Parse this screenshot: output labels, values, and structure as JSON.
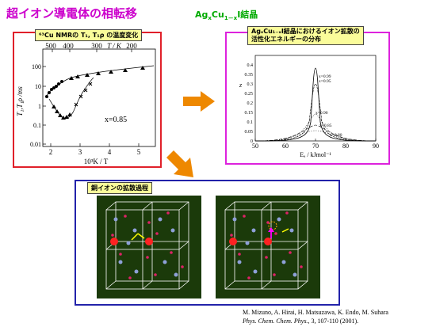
{
  "title": "超イオン導電体の相転移",
  "formula": {
    "prefix": "Ag",
    "sub1": "x",
    "mid": "Cu",
    "sub2": "1－x",
    "suffix": "I結晶"
  },
  "panel_nmr": {
    "header": "⁶³Cu NMRの T₁, T₁ρ の温度変化",
    "annotation": "x=0.85",
    "top_axis_ticks": [
      "500",
      "400",
      "300",
      "200"
    ],
    "top_axis_label": "T / K",
    "bottom_axis_ticks": [
      "2",
      "3",
      "4",
      "5"
    ],
    "bottom_axis_label": "10³K / T",
    "y_axis_ticks": [
      "100",
      "10",
      "1",
      "0.1",
      "0.01"
    ],
    "y_axis_label": "T₁,T₁ρ /ms"
  },
  "panel_energy": {
    "header_line1": "AgₓCu₁₋ₓI結晶におけるイオン拡散の",
    "header_line2": "活性化エネルギーの分布",
    "x_ticks": [
      "50",
      "60",
      "70",
      "80",
      "90"
    ],
    "x_label": "Eₐ / kJmol⁻¹",
    "y_ticks": [
      "0",
      "0.05",
      "0.1",
      "0.15",
      "0.2",
      "0.25",
      "0.3",
      "0.35",
      "0.4"
    ],
    "y_label": "z",
    "curve_labels": [
      "x=0.99",
      "x=0.95",
      "x=0.90",
      "x=0.85",
      "x=0.80"
    ]
  },
  "panel_diffusion": {
    "header": "銅イオンの拡散過程"
  },
  "citation": {
    "authors": "M. Mizuno, A. Hirai, H. Matsuzawa, K. Endo, M. Suhara",
    "journal": "Phys. Chem. Chem. Phys.",
    "details": ", 3, 107-110 (2001)."
  },
  "colors": {
    "title": "#cc00cc",
    "formula": "#00aa00",
    "arrow": "#ee8800",
    "crystal_bg": "#1b3a0a"
  }
}
